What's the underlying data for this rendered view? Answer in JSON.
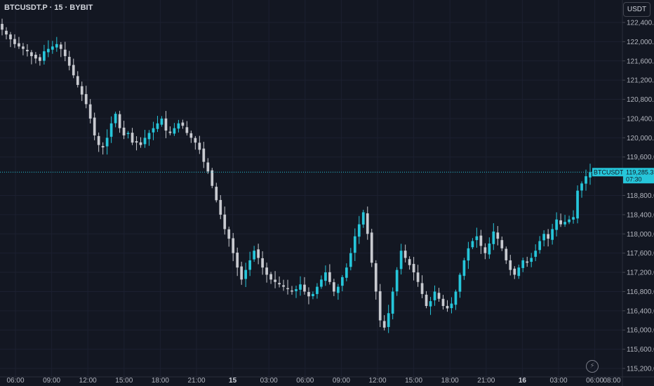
{
  "header": {
    "symbol": "BTCUSDT.P · 15 · BYBIT"
  },
  "currency_button": {
    "label": "USDT"
  },
  "price_tag": {
    "symbol_label": "BTCUSDT.P",
    "price_label": "119,285.3",
    "countdown": "07:30"
  },
  "colors": {
    "background": "#131722",
    "up": "#26c6da",
    "down": "#c8cad0",
    "grid": "#1c2030",
    "axis_text": "#b2b5be"
  },
  "icons": {
    "replay": "lightning-icon"
  },
  "chart_data": {
    "type": "candlestick",
    "symbol": "BTCUSDT.P",
    "interval": "15",
    "exchange": "BYBIT",
    "ylim": [
      115100,
      122600
    ],
    "y_ticks": [
      "122,400.0",
      "122,000.0",
      "121,600.0",
      "121,200.0",
      "120,800.0",
      "120,400.0",
      "120,000.0",
      "119,600.0",
      "118,800.0",
      "118,400.0",
      "118,000.0",
      "117,600.0",
      "117,200.0",
      "116,800.0",
      "116,400.0",
      "116,000.0",
      "115,600.0",
      "115,200.0"
    ],
    "y_tick_values": [
      122400,
      122000,
      121600,
      121200,
      120800,
      120400,
      120000,
      119600,
      118800,
      118400,
      118000,
      117600,
      117200,
      116800,
      116400,
      116000,
      115600,
      115200
    ],
    "x_ticks": [
      "06:00",
      "09:00",
      "12:00",
      "15:00",
      "18:00",
      "21:00",
      "15",
      "03:00",
      "06:00",
      "09:00",
      "12:00",
      "15:00",
      "18:00",
      "21:00",
      "16",
      "03:00",
      "06:00",
      "08:00"
    ],
    "x_tick_bold": [
      false,
      false,
      false,
      false,
      false,
      false,
      true,
      false,
      false,
      false,
      false,
      false,
      false,
      false,
      true,
      false,
      false,
      false
    ],
    "last_price": 119285.3,
    "closes": [
      122250,
      122150,
      122050,
      121950,
      121900,
      121850,
      121800,
      121700,
      121650,
      121600,
      121800,
      121850,
      121900,
      121950,
      121850,
      121700,
      121500,
      121300,
      121100,
      120900,
      120700,
      120400,
      120050,
      119850,
      119800,
      120000,
      120300,
      120500,
      120200,
      120050,
      120100,
      119900,
      119900,
      119850,
      120000,
      120100,
      120200,
      120300,
      120400,
      120150,
      120100,
      120200,
      120300,
      120250,
      120100,
      120000,
      119900,
      119750,
      119500,
      119300,
      119000,
      118700,
      118400,
      118100,
      117900,
      117600,
      117300,
      117050,
      117250,
      117450,
      117650,
      117500,
      117300,
      117150,
      117050,
      117000,
      116950,
      116900,
      116850,
      116800,
      116850,
      116950,
      116800,
      116700,
      116750,
      116900,
      117050,
      117200,
      117000,
      116800,
      116900,
      117100,
      117300,
      117600,
      117950,
      118200,
      118450,
      118000,
      117400,
      116800,
      116200,
      116050,
      116350,
      116800,
      117250,
      117650,
      117500,
      117350,
      117200,
      117000,
      116750,
      116500,
      116600,
      116800,
      116650,
      116500,
      116450,
      116550,
      116800,
      117150,
      117450,
      117700,
      117850,
      117950,
      117750,
      117600,
      117800,
      118050,
      117900,
      117700,
      117450,
      117250,
      117150,
      117300,
      117450,
      117400,
      117500,
      117650,
      117850,
      118000,
      117900,
      118100,
      118300,
      118200,
      118250,
      118300,
      118350,
      118900,
      119050,
      119200,
      119285.3
    ]
  }
}
